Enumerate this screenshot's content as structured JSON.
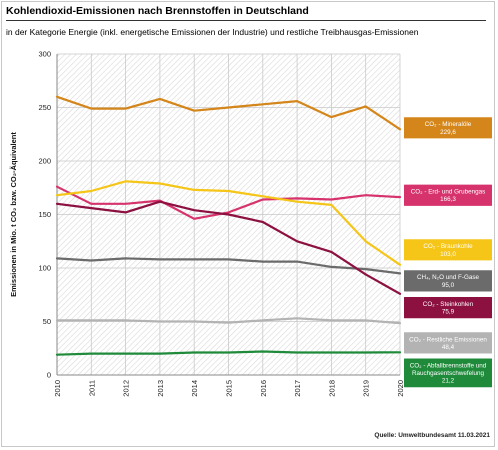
{
  "header": {
    "title": "Kohlendioxid-Emissionen nach Brennstoffen in Deutschland",
    "subtitle": "in der Kategorie Energie (inkl. energetische Emissionen der Industrie) und restliche Treibhausgas-Emissionen",
    "source": "Quelle: Umweltbundesamt  11.03.2021"
  },
  "chart_data": {
    "type": "line",
    "title": "Kohlendioxid-Emissionen nach Brennstoffen in Deutschland",
    "subtitle": "in der Kategorie Energie (inkl. energetische Emissionen der Industrie) und restliche Treibhausgas-Emissionen",
    "ylabel": "Emissionen in Mio. t CO₂ bzw. CO₂-Äquivalent",
    "xlabel": "",
    "x": [
      2010,
      2011,
      2012,
      2013,
      2014,
      2015,
      2016,
      2017,
      2018,
      2019,
      2020
    ],
    "ylim": [
      0,
      300
    ],
    "yticks": [
      0,
      50,
      100,
      150,
      200,
      250,
      300
    ],
    "grid": true,
    "legend_position": "right",
    "series": [
      {
        "key": "mineraloele",
        "name": "CO₂ - Mineralöle",
        "label_lines": [
          "CO₂ - Mineralöle",
          "229,6"
        ],
        "color": "#d4861a",
        "values": [
          260,
          249,
          249,
          258,
          247,
          250,
          253,
          256,
          241,
          251,
          229.6
        ]
      },
      {
        "key": "erdgas",
        "name": "CO₂ - Erd- und Grubengas",
        "label_lines": [
          "CO₂ - Erd- und Grubengas",
          "166,3"
        ],
        "color": "#d6336c",
        "values": [
          176,
          160,
          160,
          163,
          146,
          152,
          164,
          165,
          164,
          168,
          166.3
        ]
      },
      {
        "key": "braunkohle",
        "name": "CO₂ - Braunkohle",
        "label_lines": [
          "CO₂ - Braunkohle",
          "103,0"
        ],
        "color": "#f5c518",
        "values": [
          168,
          172,
          181,
          179,
          173,
          172,
          167,
          162,
          159,
          125,
          103.0
        ]
      },
      {
        "key": "fgase",
        "name": "CH₄, N₂O und F-Gase",
        "label_lines": [
          "CH₄, N₂O und F-Gase",
          "95,0"
        ],
        "color": "#6b6b6b",
        "values": [
          109,
          107,
          109,
          108,
          108,
          108,
          106,
          106,
          101,
          99,
          95.0
        ]
      },
      {
        "key": "steinkohle",
        "name": "CO₂ - Steinkohlen",
        "label_lines": [
          "CO₂ - Steinkohlen",
          "75,9"
        ],
        "color": "#8c1040",
        "values": [
          160,
          156,
          152,
          162,
          154,
          150,
          143,
          125,
          115,
          94,
          75.9
        ]
      },
      {
        "key": "restliche",
        "name": "CO₂ - Restliche Emissionen",
        "label_lines": [
          "CO₂ - Restliche Emissionen",
          "48,4"
        ],
        "color": "#b3b3b3",
        "values": [
          51,
          51,
          51,
          50,
          50,
          49,
          51,
          53,
          51,
          51,
          48.4
        ]
      },
      {
        "key": "abfall",
        "name": "CO₂ - Abfallbrennstoffe und Rauchgasentschwefelung",
        "label_lines": [
          "CO₂ - Abfallbrennstoffe und",
          "Rauchgasentschwefelung",
          "21,2"
        ],
        "color": "#1e8a3a",
        "values": [
          19,
          20,
          20,
          20,
          21,
          21,
          22,
          21,
          21,
          21,
          21.2
        ]
      }
    ],
    "legend_y": {
      "mineraloele": 231,
      "erdgas": 168,
      "braunkohle": 117,
      "fgase": 88,
      "steinkohle": 63,
      "restliche": 30,
      "abfall": 2
    }
  }
}
